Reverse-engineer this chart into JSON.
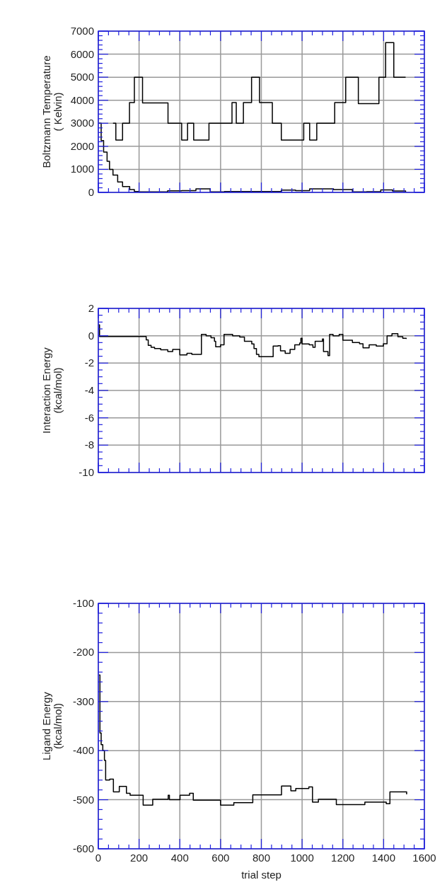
{
  "chart_data": [
    {
      "type": "step",
      "ylabel": "Boltzmann Temperature\n( Kelvin)",
      "xlim": [
        0,
        1600
      ],
      "ylim": [
        0,
        7000
      ],
      "xticks": [
        0,
        {
          "value": 50,
          "label": null
        },
        {
          "value": 100,
          "label": null
        },
        {
          "value": 150,
          "label": null
        },
        200,
        {
          "value": 250,
          "label": null
        },
        {
          "value": 300,
          "label": null
        },
        {
          "value": 350,
          "label": null
        },
        400,
        {
          "value": 450,
          "label": null
        },
        {
          "value": 500,
          "label": null
        },
        {
          "value": 550,
          "label": null
        },
        600,
        {
          "value": 650,
          "label": null
        },
        {
          "value": 700,
          "label": null
        },
        {
          "value": 750,
          "label": null
        },
        800,
        {
          "value": 850,
          "label": null
        },
        {
          "value": 900,
          "label": null
        },
        {
          "value": 950,
          "label": null
        },
        1000,
        {
          "value": 1050,
          "label": null
        },
        {
          "value": 1100,
          "label": null
        },
        {
          "value": 1150,
          "label": null
        },
        1200,
        {
          "value": 1250,
          "label": null
        },
        {
          "value": 1300,
          "label": null
        },
        {
          "value": 1350,
          "label": null
        },
        1400,
        {
          "value": 1450,
          "label": null
        },
        {
          "value": 1500,
          "label": null
        },
        {
          "value": 1550,
          "label": null
        },
        1600
      ],
      "yticks": [
        0,
        {
          "value": 200,
          "label": null
        },
        {
          "value": 400,
          "label": null
        },
        {
          "value": 600,
          "label": null
        },
        {
          "value": 800,
          "label": null
        },
        1000,
        {
          "value": 1200,
          "label": null
        },
        {
          "value": 1400,
          "label": null
        },
        {
          "value": 1600,
          "label": null
        },
        {
          "value": 1800,
          "label": null
        },
        2000,
        {
          "value": 2200,
          "label": null
        },
        {
          "value": 2400,
          "label": null
        },
        {
          "value": 2600,
          "label": null
        },
        {
          "value": 2800,
          "label": null
        },
        3000,
        {
          "value": 3200,
          "label": null
        },
        {
          "value": 3400,
          "label": null
        },
        {
          "value": 3600,
          "label": null
        },
        {
          "value": 3800,
          "label": null
        },
        4000,
        {
          "value": 4200,
          "label": null
        },
        {
          "value": 4400,
          "label": null
        },
        {
          "value": 4600,
          "label": null
        },
        {
          "value": 4800,
          "label": null
        },
        5000,
        {
          "value": 5200,
          "label": null
        },
        {
          "value": 5400,
          "label": null
        },
        {
          "value": 5600,
          "label": null
        },
        {
          "value": 5800,
          "label": null
        },
        6000,
        {
          "value": 6200,
          "label": null
        },
        {
          "value": 6400,
          "label": null
        },
        {
          "value": 6600,
          "label": null
        },
        {
          "value": 6800,
          "label": null
        },
        7000
      ],
      "grid": true,
      "tick_labels": "y",
      "line_style": "solid",
      "series": [
        {
          "color": "#000000",
          "x": [
            72,
            86,
            119,
            153,
            177,
            217,
            342,
            409,
            438,
            468,
            543,
            656,
            677,
            712,
            752,
            791,
            854,
            898,
            1008,
            1037,
            1072,
            1160,
            1214,
            1276,
            1377,
            1410,
            1450,
            1508
          ],
          "values": [
            3000,
            2270,
            3000,
            3900,
            5000,
            3880,
            3000,
            2270,
            3000,
            2270,
            3000,
            3900,
            3000,
            3900,
            5000,
            3900,
            3000,
            2270,
            3000,
            2270,
            3000,
            3900,
            5000,
            3850,
            5000,
            6500,
            5000,
            5000
          ]
        },
        {
          "color": "#000000",
          "x": [
            2,
            14,
            26,
            43,
            55,
            72,
            95,
            119,
            154,
            177,
            200,
            258,
            340,
            409,
            479,
            549,
            619,
            665,
            735,
            805,
            898,
            968,
            1037,
            1154,
            1247,
            1317,
            1386,
            1444,
            1508
          ],
          "values": [
            3000,
            2250,
            1750,
            1350,
            1000,
            750,
            450,
            250,
            120,
            40,
            20,
            20,
            70,
            80,
            150,
            20,
            40,
            null,
            null,
            null,
            100,
            80,
            150,
            120,
            20,
            30,
            110,
            60,
            20
          ]
        }
      ]
    },
    {
      "type": "step",
      "ylabel": "Interaction Energy\n(kcal/mol)",
      "xlim": [
        0,
        1600
      ],
      "ylim": [
        -10,
        2
      ],
      "xticks": [
        0,
        {
          "value": 50,
          "label": null
        },
        {
          "value": 100,
          "label": null
        },
        {
          "value": 150,
          "label": null
        },
        200,
        {
          "value": 250,
          "label": null
        },
        {
          "value": 300,
          "label": null
        },
        {
          "value": 350,
          "label": null
        },
        400,
        {
          "value": 450,
          "label": null
        },
        {
          "value": 500,
          "label": null
        },
        {
          "value": 550,
          "label": null
        },
        600,
        {
          "value": 650,
          "label": null
        },
        {
          "value": 700,
          "label": null
        },
        {
          "value": 750,
          "label": null
        },
        800,
        {
          "value": 850,
          "label": null
        },
        {
          "value": 900,
          "label": null
        },
        {
          "value": 950,
          "label": null
        },
        1000,
        {
          "value": 1050,
          "label": null
        },
        {
          "value": 1100,
          "label": null
        },
        {
          "value": 1150,
          "label": null
        },
        1200,
        {
          "value": 1250,
          "label": null
        },
        {
          "value": 1300,
          "label": null
        },
        {
          "value": 1350,
          "label": null
        },
        1400,
        {
          "value": 1450,
          "label": null
        },
        {
          "value": 1500,
          "label": null
        },
        {
          "value": 1550,
          "label": null
        },
        1600
      ],
      "yticks": [
        -10,
        {
          "value": -9.5,
          "label": null
        },
        {
          "value": -9,
          "label": null
        },
        {
          "value": -8.5,
          "label": null
        },
        -8,
        {
          "value": -7.5,
          "label": null
        },
        {
          "value": -7,
          "label": null
        },
        {
          "value": -6.5,
          "label": null
        },
        -6,
        {
          "value": -5.5,
          "label": null
        },
        {
          "value": -5,
          "label": null
        },
        {
          "value": -4.5,
          "label": null
        },
        -4,
        {
          "value": -3.5,
          "label": null
        },
        {
          "value": -3,
          "label": null
        },
        {
          "value": -2.5,
          "label": null
        },
        -2,
        {
          "value": -1.5,
          "label": null
        },
        {
          "value": -1,
          "label": null
        },
        {
          "value": -0.5,
          "label": null
        },
        0,
        {
          "value": 0.5,
          "label": null
        },
        {
          "value": 1,
          "label": null
        },
        {
          "value": 1.5,
          "label": null
        },
        2
      ],
      "grid": true,
      "tick_labels": "y",
      "line_style": "solid",
      "series": [
        {
          "color": "#000000",
          "x": [
            2,
            6,
            235,
            245,
            259,
            276,
            306,
            341,
            365,
            400,
            435,
            459,
            500,
            506,
            529,
            553,
            570,
            576,
            600,
            617,
            659,
            694,
            717,
            753,
            764,
            776,
            788,
            835,
            858,
            882,
            894,
            917,
            941,
            964,
            988,
            994,
            1000,
            1035,
            1053,
            1064,
            1100,
            1105,
            1127,
            1135,
            1152,
            1182,
            1200,
            1247,
            1282,
            1299,
            1329,
            1364,
            1399,
            1417,
            1441,
            1470,
            1494,
            1511
          ],
          "values": [
            0.8,
            -0.05,
            -0.3,
            -0.7,
            -0.85,
            -0.93,
            -1.02,
            -1.15,
            -1.0,
            -1.4,
            -1.28,
            -1.36,
            -1.36,
            0.1,
            0.0,
            -0.15,
            -0.4,
            -0.8,
            -0.67,
            0.1,
            0.0,
            -0.1,
            -0.4,
            -0.6,
            -0.93,
            -1.36,
            -1.53,
            -1.53,
            -0.76,
            -0.73,
            -1.1,
            -1.28,
            -1.0,
            -0.67,
            -0.53,
            -0.19,
            -0.6,
            -0.67,
            -0.84,
            -0.41,
            -0.24,
            -1.15,
            -1.45,
            0.1,
            0.0,
            0.1,
            -0.33,
            -0.5,
            -0.59,
            -0.88,
            -0.67,
            -0.76,
            -0.59,
            0.0,
            0.15,
            -0.07,
            -0.19,
            -0.24
          ]
        }
      ]
    },
    {
      "type": "step",
      "ylabel": "Ligand Energy\n(kcal/mol)",
      "xlabel": "trial step",
      "xlim": [
        0,
        1600
      ],
      "ylim": [
        -600,
        -100
      ],
      "xticks": [
        0,
        {
          "value": 50,
          "label": null
        },
        {
          "value": 100,
          "label": null
        },
        {
          "value": 150,
          "label": null
        },
        200,
        {
          "value": 250,
          "label": null
        },
        {
          "value": 300,
          "label": null
        },
        {
          "value": 350,
          "label": null
        },
        400,
        {
          "value": 450,
          "label": null
        },
        {
          "value": 500,
          "label": null
        },
        {
          "value": 550,
          "label": null
        },
        600,
        {
          "value": 650,
          "label": null
        },
        {
          "value": 700,
          "label": null
        },
        {
          "value": 750,
          "label": null
        },
        800,
        {
          "value": 850,
          "label": null
        },
        {
          "value": 900,
          "label": null
        },
        {
          "value": 950,
          "label": null
        },
        1000,
        {
          "value": 1050,
          "label": null
        },
        {
          "value": 1100,
          "label": null
        },
        {
          "value": 1150,
          "label": null
        },
        1200,
        {
          "value": 1250,
          "label": null
        },
        {
          "value": 1300,
          "label": null
        },
        {
          "value": 1350,
          "label": null
        },
        1400,
        {
          "value": 1450,
          "label": null
        },
        {
          "value": 1500,
          "label": null
        },
        {
          "value": 1550,
          "label": null
        },
        1600
      ],
      "yticks": [
        -600,
        {
          "value": -580,
          "label": null
        },
        {
          "value": -560,
          "label": null
        },
        {
          "value": -540,
          "label": null
        },
        {
          "value": -520,
          "label": null
        },
        -500,
        {
          "value": -480,
          "label": null
        },
        {
          "value": -460,
          "label": null
        },
        {
          "value": -440,
          "label": null
        },
        {
          "value": -420,
          "label": null
        },
        -400,
        {
          "value": -380,
          "label": null
        },
        {
          "value": -360,
          "label": null
        },
        {
          "value": -340,
          "label": null
        },
        {
          "value": -320,
          "label": null
        },
        -300,
        {
          "value": -280,
          "label": null
        },
        {
          "value": -260,
          "label": null
        },
        {
          "value": -240,
          "label": null
        },
        {
          "value": -220,
          "label": null
        },
        -200,
        {
          "value": -180,
          "label": null
        },
        {
          "value": -160,
          "label": null
        },
        {
          "value": -140,
          "label": null
        },
        {
          "value": -120,
          "label": null
        },
        -100
      ],
      "grid": true,
      "line_style": "solid",
      "series": [
        {
          "color": "#000000",
          "x": [
            4,
            8,
            14,
            22,
            30,
            36,
            56,
            74,
            103,
            138,
            156,
            220,
            267,
            343,
            349,
            401,
            448,
            466,
            600,
            665,
            758,
            899,
            945,
            969,
            1033,
            1051,
            1080,
            1168,
            1308,
            1413,
            1431,
            1513
          ],
          "values": [
            -246,
            -364,
            -388,
            -400,
            -420,
            -460,
            -458,
            -484,
            -473,
            -487,
            -491,
            -511,
            -499,
            -491,
            -500,
            -491,
            -487,
            -501,
            -511,
            -506,
            -490,
            -472,
            -482,
            -477,
            -474,
            -505,
            -499,
            -510,
            -505,
            -508,
            -484,
            -489
          ]
        }
      ]
    }
  ]
}
